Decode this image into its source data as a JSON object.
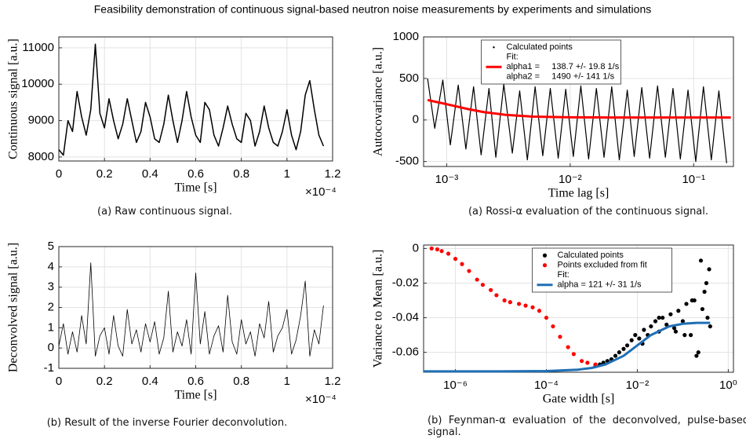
{
  "title": "Feasibility demonstration of continuous signal-based neutron noise measurements by experiments and simulations",
  "chart_data": [
    {
      "type": "line",
      "caption": "(a) Raw continuous signal.",
      "x_label": "Time [s]",
      "y_label": "Continuous signal [a.u.]",
      "x_multiplier": "×10⁻⁴",
      "xlim": [
        0,
        1.2
      ],
      "xticks": [
        0,
        0.2,
        0.4,
        0.6,
        0.8,
        1,
        1.2
      ],
      "ylim": [
        7890,
        11300
      ],
      "yticks": [
        8000,
        9000,
        10000,
        11000
      ],
      "grid": true,
      "color": "#000000",
      "x": [
        0,
        0.02,
        0.04,
        0.06,
        0.08,
        0.1,
        0.12,
        0.14,
        0.16,
        0.18,
        0.2,
        0.22,
        0.24,
        0.26,
        0.28,
        0.3,
        0.32,
        0.34,
        0.36,
        0.38,
        0.4,
        0.42,
        0.44,
        0.46,
        0.48,
        0.5,
        0.52,
        0.54,
        0.56,
        0.58,
        0.6,
        0.62,
        0.64,
        0.66,
        0.68,
        0.7,
        0.72,
        0.74,
        0.76,
        0.78,
        0.8,
        0.82,
        0.84,
        0.86,
        0.88,
        0.9,
        0.92,
        0.94,
        0.96,
        0.98,
        1,
        1.02,
        1.04,
        1.06,
        1.08,
        1.1,
        1.12,
        1.14,
        1.16
      ],
      "values": [
        8200,
        8050,
        9000,
        8700,
        9800,
        9100,
        8600,
        9300,
        11100,
        9200,
        8800,
        9600,
        9000,
        8500,
        8900,
        9600,
        9000,
        8400,
        8700,
        9500,
        9100,
        8500,
        8400,
        8900,
        9700,
        9000,
        8400,
        9000,
        9800,
        9100,
        8600,
        8400,
        9500,
        9300,
        8600,
        8300,
        8800,
        9400,
        8900,
        8500,
        8400,
        9200,
        9000,
        8300,
        8700,
        9400,
        8800,
        8400,
        8300,
        8700,
        9300,
        8600,
        8200,
        8700,
        9700,
        10100,
        9300,
        8600,
        8300
      ]
    },
    {
      "type": "line",
      "caption": "(b) Result of the inverse Fourier deconvolution.",
      "x_label": "Time [s]",
      "y_label": "Deconvolved signal [a.u.]",
      "x_multiplier": "×10⁻⁴",
      "xlim": [
        0,
        1.2
      ],
      "xticks": [
        0,
        0.2,
        0.4,
        0.6,
        0.8,
        1,
        1.2
      ],
      "ylim": [
        -1,
        5
      ],
      "yticks": [
        -1,
        0,
        1,
        2,
        3,
        4,
        5
      ],
      "grid": true,
      "color": "#000000",
      "x": [
        0,
        0.02,
        0.04,
        0.06,
        0.08,
        0.1,
        0.12,
        0.14,
        0.16,
        0.18,
        0.2,
        0.22,
        0.24,
        0.26,
        0.28,
        0.3,
        0.32,
        0.34,
        0.36,
        0.38,
        0.4,
        0.42,
        0.44,
        0.46,
        0.48,
        0.5,
        0.52,
        0.54,
        0.56,
        0.58,
        0.6,
        0.62,
        0.64,
        0.66,
        0.68,
        0.7,
        0.72,
        0.74,
        0.76,
        0.78,
        0.8,
        0.82,
        0.84,
        0.86,
        0.88,
        0.9,
        0.92,
        0.94,
        0.96,
        0.98,
        1,
        1.02,
        1.04,
        1.06,
        1.08,
        1.1,
        1.12,
        1.14,
        1.16
      ],
      "values": [
        0.1,
        1.2,
        -0.3,
        0.8,
        -0.2,
        1.6,
        0.2,
        4.2,
        -0.4,
        0.6,
        1.0,
        -0.3,
        1.6,
        0.1,
        -0.4,
        1.9,
        0.2,
        0.9,
        -0.2,
        1.2,
        0.3,
        1.3,
        -0.3,
        0.5,
        2.8,
        -0.2,
        0.8,
        0.1,
        1.4,
        -0.3,
        3.7,
        0.2,
        1.8,
        -0.3,
        0.6,
        1.1,
        -0.2,
        2.6,
        0.3,
        -0.3,
        1.4,
        0.2,
        0.8,
        -0.4,
        1.2,
        0.5,
        2.3,
        -0.2,
        0.6,
        1.0,
        1.9,
        -0.3,
        0.4,
        1.6,
        3.3,
        -0.4,
        0.9,
        0.2,
        2.1
      ]
    },
    {
      "type": "line",
      "caption": "(a) Rossi-α evaluation of the continuous signal.",
      "x_label": "Time lag [s]",
      "y_label": "Autocovariance [a.u.]",
      "log_x": true,
      "grid": true,
      "legend": "upper center",
      "xlim": [
        0.00065,
        0.21
      ],
      "xticks": [
        {
          "value": 0.001,
          "label": "10⁻³"
        },
        {
          "value": 0.01,
          "label": "10⁻²"
        },
        {
          "value": 0.1,
          "label": "10⁻¹"
        }
      ],
      "ylim": [
        -560,
        1000
      ],
      "yticks": [
        -500,
        0,
        500,
        1000
      ],
      "legend_notes": [
        "alpha1 =     138.7 +/- 19.8 1/s",
        "alpha2 =     1490 +/- 141 1/s"
      ],
      "series": [
        {
          "name": "Calculated points",
          "color": "#000000",
          "style": "line",
          "x": [
            0.0007,
            0.0008,
            0.00093,
            0.00107,
            0.00124,
            0.00143,
            0.00165,
            0.0019,
            0.0022,
            0.0025,
            0.0029,
            0.0034,
            0.0039,
            0.0045,
            0.0052,
            0.006,
            0.0069,
            0.008,
            0.0092,
            0.0106,
            0.0122,
            0.0141,
            0.0163,
            0.0188,
            0.0217,
            0.025,
            0.029,
            0.033,
            0.038,
            0.044,
            0.051,
            0.059,
            0.068,
            0.078,
            0.09,
            0.104,
            0.12,
            0.139,
            0.16,
            0.185
          ],
          "values": [
            500,
            -100,
            480,
            -300,
            420,
            -350,
            400,
            -420,
            380,
            -450,
            430,
            -400,
            350,
            -480,
            400,
            -430,
            380,
            -460,
            370,
            -440,
            410,
            -470,
            380,
            -450,
            400,
            -480,
            360,
            -440,
            390,
            -460,
            410,
            -450,
            380,
            -470,
            360,
            -500,
            400,
            -480,
            350,
            -520
          ]
        },
        {
          "name": "Fit:",
          "color": "#ff0000",
          "style": "fit",
          "x": [
            0.0007,
            0.001,
            0.0015,
            0.002,
            0.003,
            0.005,
            0.01,
            0.02,
            0.05,
            0.1,
            0.2
          ],
          "values": [
            240,
            190,
            130,
            95,
            62,
            40,
            32,
            30,
            30,
            30,
            30
          ]
        }
      ]
    },
    {
      "type": "line",
      "caption": "(b) Feynman-α evaluation of the deconvolved, pulse-based signal.",
      "x_label": "Gate width [s]",
      "y_label": "Variance to Mean [a.u.]",
      "log_x": true,
      "grid": true,
      "legend": "upper center",
      "xlim": [
        2e-07,
        1.3
      ],
      "xticks": [
        {
          "value": 1e-06,
          "label": "10⁻⁶"
        },
        {
          "value": 0.0001,
          "label": "10⁻⁴"
        },
        {
          "value": 0.01,
          "label": "10⁻²"
        },
        {
          "value": 1,
          "label": "10⁰"
        }
      ],
      "ylim": [
        -0.0715,
        0.002
      ],
      "yticks": [
        -0.06,
        -0.04,
        -0.02,
        0
      ],
      "legend_notes": [
        "alpha = 121 +/- 31 1/s"
      ],
      "series": [
        {
          "name": "Calculated points",
          "color": "#000000",
          "style": "points",
          "x": [
            0.0012,
            0.0015,
            0.0018,
            0.0022,
            0.0027,
            0.0033,
            0.004,
            0.005,
            0.006,
            0.0075,
            0.009,
            0.011,
            0.014,
            0.017,
            0.02,
            0.025,
            0.03,
            0.036,
            0.044,
            0.054,
            0.065,
            0.08,
            0.1,
            0.12,
            0.15,
            0.18,
            0.22,
            0.27,
            0.33,
            0.4,
            0.013,
            0.03,
            0.07,
            0.11,
            0.16,
            0.2,
            0.25,
            0.3,
            0.35,
            0.38
          ],
          "values": [
            -0.068,
            -0.067,
            -0.066,
            -0.065,
            -0.064,
            -0.062,
            -0.06,
            -0.058,
            -0.056,
            -0.053,
            -0.05,
            -0.052,
            -0.047,
            -0.05,
            -0.045,
            -0.042,
            -0.048,
            -0.04,
            -0.044,
            -0.038,
            -0.046,
            -0.036,
            -0.042,
            -0.032,
            -0.05,
            -0.03,
            -0.06,
            -0.035,
            -0.02,
            -0.045,
            -0.055,
            -0.04,
            -0.048,
            -0.05,
            -0.03,
            -0.062,
            -0.007,
            -0.025,
            -0.04,
            -0.012
          ]
        },
        {
          "name": "Points excluded from fit",
          "color": "#ff0000",
          "style": "points",
          "x": [
            3e-07,
            4e-07,
            5e-07,
            7e-07,
            1e-06,
            1.4e-06,
            2e-06,
            3e-06,
            4e-06,
            6e-06,
            8e-06,
            1.2e-05,
            1.6e-05,
            2.5e-05,
            3.5e-05,
            5e-05,
            7e-05,
            0.0001,
            0.00014,
            0.0002,
            0.0003,
            0.0004,
            0.0006,
            0.0008,
            0.0012
          ],
          "values": [
            0,
            -0.0005,
            -0.0015,
            -0.003,
            -0.006,
            -0.009,
            -0.013,
            -0.018,
            -0.021,
            -0.024,
            -0.027,
            -0.03,
            -0.031,
            -0.032,
            -0.033,
            -0.034,
            -0.036,
            -0.04,
            -0.045,
            -0.051,
            -0.057,
            -0.061,
            -0.065,
            -0.066,
            -0.067
          ]
        },
        {
          "name": "Fit:",
          "color": "#1f6fb4",
          "style": "fit",
          "x": [
            2e-07,
            1e-06,
            1e-05,
            0.0001,
            0.0005,
            0.001,
            0.002,
            0.005,
            0.01,
            0.02,
            0.05,
            0.1,
            0.2,
            0.4
          ],
          "values": [
            -0.071,
            -0.071,
            -0.071,
            -0.0708,
            -0.07,
            -0.069,
            -0.067,
            -0.062,
            -0.056,
            -0.05,
            -0.045,
            -0.0435,
            -0.043,
            -0.043
          ]
        }
      ]
    }
  ]
}
